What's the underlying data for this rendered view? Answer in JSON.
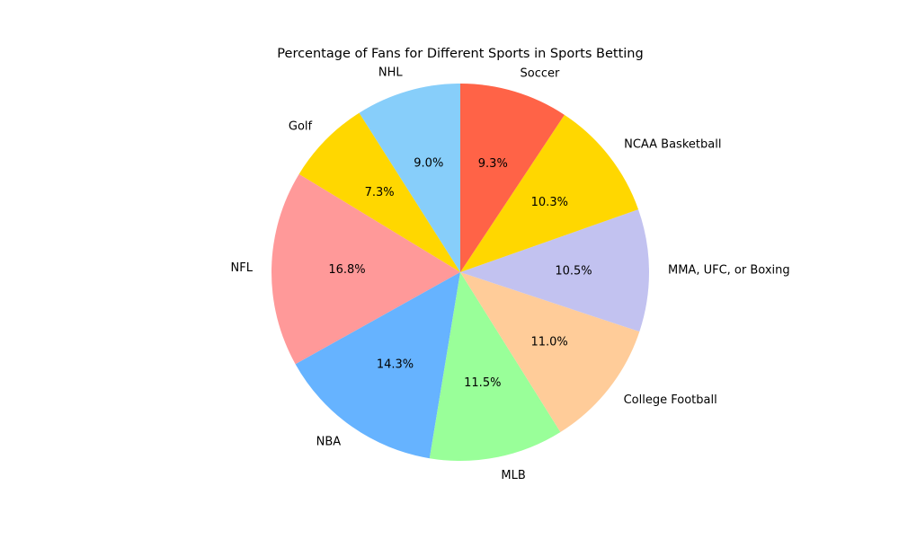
{
  "chart_data": {
    "type": "pie",
    "title": "Percentage of Fans for Different Sports in Sports Betting",
    "start_angle_deg": 90,
    "direction": "counterclockwise",
    "legend": "none",
    "slices": [
      {
        "label": "NHL",
        "value": 9.0,
        "pct_label": "9.0%",
        "color": "#87CEFA"
      },
      {
        "label": "Golf",
        "value": 7.3,
        "pct_label": "7.3%",
        "color": "#FFD700"
      },
      {
        "label": "NFL",
        "value": 16.8,
        "pct_label": "16.8%",
        "color": "#FF9999"
      },
      {
        "label": "NBA",
        "value": 14.3,
        "pct_label": "14.3%",
        "color": "#66B3FF"
      },
      {
        "label": "MLB",
        "value": 11.5,
        "pct_label": "11.5%",
        "color": "#99FF99"
      },
      {
        "label": "College Football",
        "value": 11.0,
        "pct_label": "11.0%",
        "color": "#FFCC99"
      },
      {
        "label": "MMA, UFC, or Boxing",
        "value": 10.5,
        "pct_label": "10.5%",
        "color": "#C2C2F0"
      },
      {
        "label": "NCAA Basketball",
        "value": 10.3,
        "pct_label": "10.3%",
        "color": "#FFD700"
      },
      {
        "label": "Soccer",
        "value": 9.3,
        "pct_label": "9.3%",
        "color": "#FF6347"
      }
    ]
  }
}
